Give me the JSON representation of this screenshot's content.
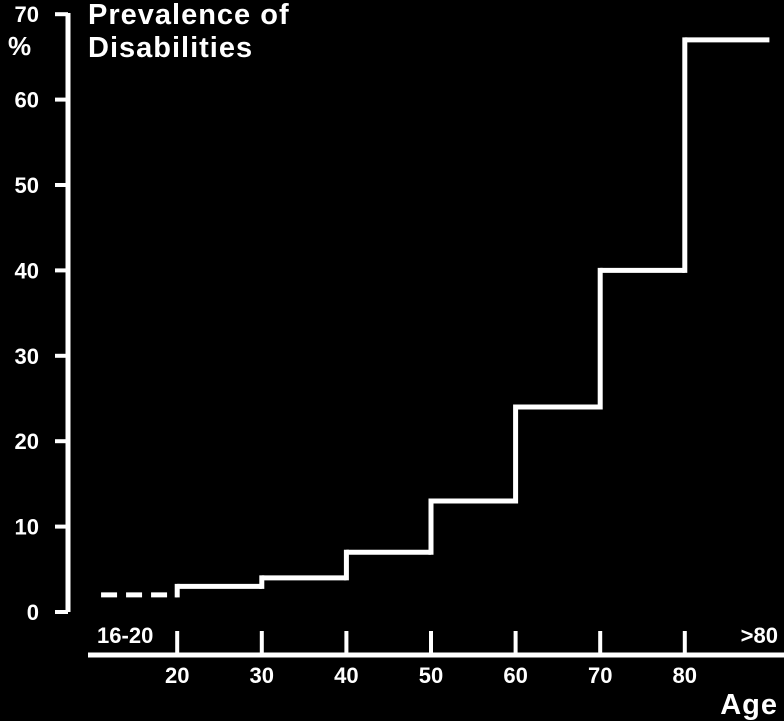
{
  "chart_data": {
    "type": "line",
    "step": true,
    "title": "Prevalence of",
    "subtitle": "Disabilities",
    "ylabel": "%",
    "xlabel": "Age",
    "ylim": [
      0,
      70
    ],
    "yticks": [
      0,
      10,
      20,
      30,
      40,
      50,
      60,
      70
    ],
    "yticklabels": [
      "0",
      "10",
      "20",
      "30",
      "40",
      "50",
      "60",
      "70"
    ],
    "xlim": [
      11,
      90
    ],
    "xticks": [
      20,
      30,
      40,
      50,
      60,
      70,
      80
    ],
    "xticklabels": [
      "20",
      "30",
      "40",
      "50",
      "60",
      "70",
      "80"
    ],
    "bracket_labels": [
      {
        "text": "16-20",
        "x_start": 11,
        "x_end": 20
      },
      {
        "text": ">80",
        "x_start": 80,
        "x_end": 90
      }
    ],
    "series": [
      {
        "segments": [
          {
            "x_start": 11,
            "x_end": 20,
            "y": 2,
            "dashed": true
          },
          {
            "x_start": 20,
            "x_end": 30,
            "y": 3
          },
          {
            "x_start": 30,
            "x_end": 40,
            "y": 4
          },
          {
            "x_start": 40,
            "x_end": 50,
            "y": 7
          },
          {
            "x_start": 50,
            "x_end": 60,
            "y": 13
          },
          {
            "x_start": 60,
            "x_end": 70,
            "y": 24
          },
          {
            "x_start": 70,
            "x_end": 80,
            "y": 40
          },
          {
            "x_start": 80,
            "x_end": 90,
            "y": 67
          }
        ]
      }
    ],
    "grid": false,
    "colors": {
      "background": "#000000",
      "foreground": "#ffffff"
    }
  }
}
